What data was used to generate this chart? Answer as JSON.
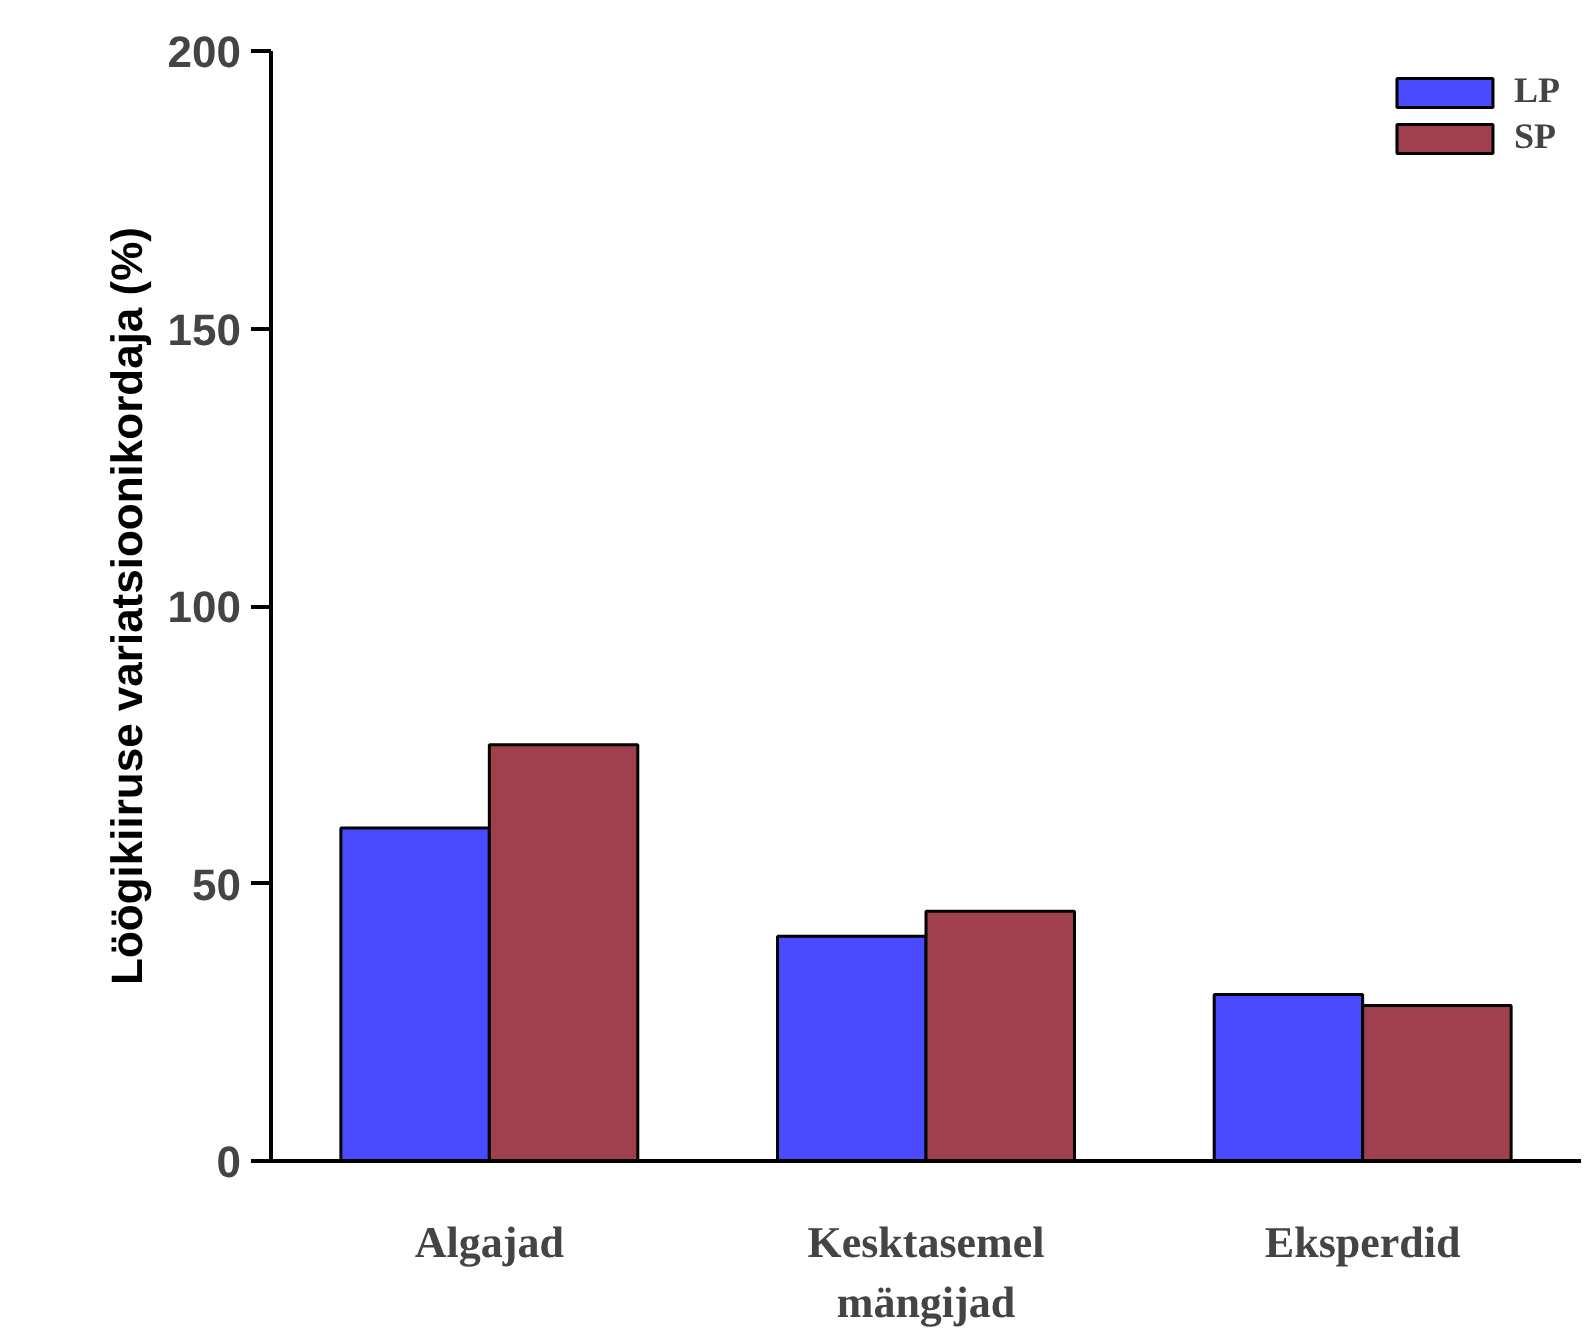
{
  "chart_data": {
    "type": "bar",
    "ylabel": "Löögikiiruse variatsioonikordaja (%)",
    "categories": [
      "Algajad",
      "Kesktasemel mängijad",
      "Eksperdid"
    ],
    "series": [
      {
        "name": "LP",
        "color": "#4a4aff",
        "values": [
          60,
          40.5,
          30
        ]
      },
      {
        "name": "SP",
        "color": "#a0404f",
        "values": [
          75,
          45,
          28
        ]
      }
    ],
    "ylim": [
      0,
      200
    ],
    "yticks": [
      0,
      50,
      100,
      150,
      200
    ],
    "grid": false,
    "legend": "top right"
  }
}
